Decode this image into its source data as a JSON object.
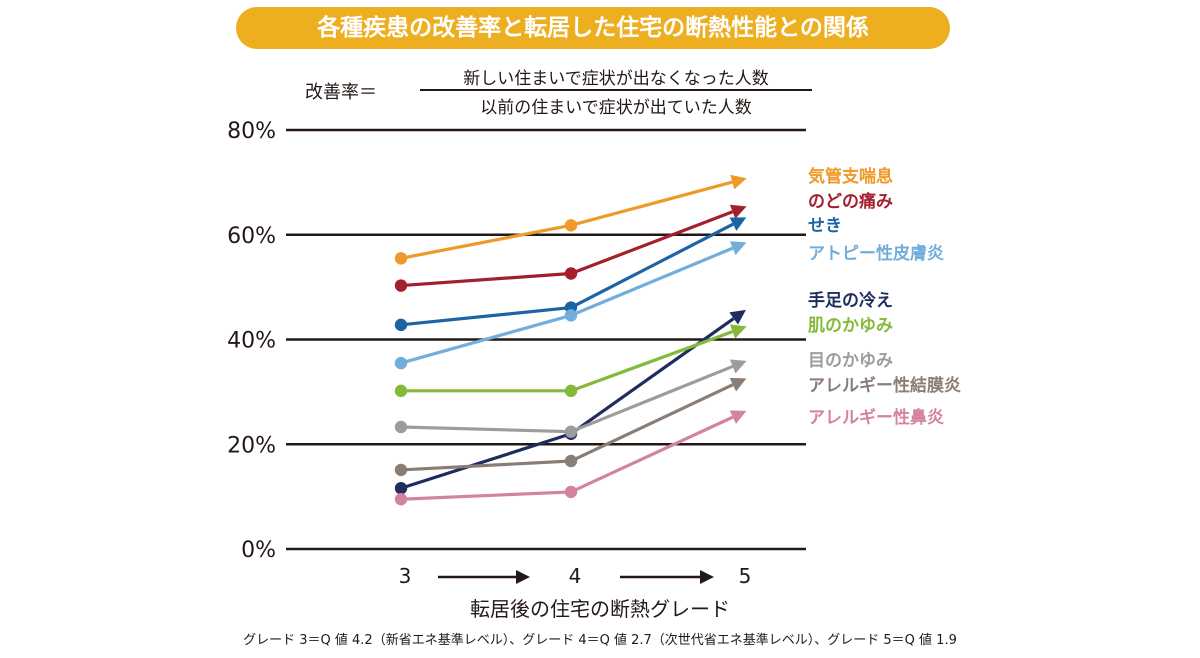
{
  "header": {
    "title": "各種疾患の改善率と転居した住宅の断熱性能との関係"
  },
  "formula": {
    "label": "改善率＝",
    "numerator": "新しい住まいで症状が出なくなった人数",
    "denominator": "以前の住まいで症状が出ていた人数"
  },
  "x_axis_title": "転居後の住宅の断熱グレード",
  "footnote": "グレード 3＝Q 値 4.2（新省エネ基準レベル）、グレード 4＝Q 値 2.7（次世代省エネ基準レベル）、グレード 5＝Q 値 1.9",
  "chart_data": {
    "type": "line",
    "title": "",
    "xlabel": "転居後の住宅の断熱グレード",
    "ylabel": "",
    "categories": [
      "3",
      "4",
      "5"
    ],
    "ylim": [
      0,
      80
    ],
    "yticks": [
      0,
      20,
      40,
      60,
      80
    ],
    "ytick_labels": [
      "0%",
      "20%",
      "40%",
      "60%",
      "80%"
    ],
    "grid": true,
    "legend_position": "right",
    "series": [
      {
        "name": "気管支喘息",
        "color": "#EE9A28",
        "values": [
          55.5,
          61.8,
          70.5
        ]
      },
      {
        "name": "のどの痛み",
        "color": "#A41F2D",
        "values": [
          50.3,
          52.6,
          65.0
        ]
      },
      {
        "name": "せき",
        "color": "#1D64A7",
        "values": [
          42.8,
          46.1,
          62.8
        ]
      },
      {
        "name": "アトピー性皮膚炎",
        "color": "#72AEDC",
        "values": [
          35.5,
          44.6,
          58.1
        ]
      },
      {
        "name": "手足の冷え",
        "color": "#1E2D5E",
        "values": [
          11.6,
          22.0,
          45.0
        ]
      },
      {
        "name": "肌のかゆみ",
        "color": "#84B93A",
        "values": [
          30.2,
          30.2,
          42.1
        ]
      },
      {
        "name": "目のかゆみ",
        "color": "#9C9C9C",
        "values": [
          23.3,
          22.4,
          35.5
        ]
      },
      {
        "name": "アレルギー性結膜炎",
        "color": "#8A7D76",
        "values": [
          15.1,
          16.8,
          32.1
        ]
      },
      {
        "name": "アレルギー性鼻炎",
        "color": "#D383A2",
        "values": [
          9.5,
          10.9,
          25.9
        ]
      }
    ]
  }
}
